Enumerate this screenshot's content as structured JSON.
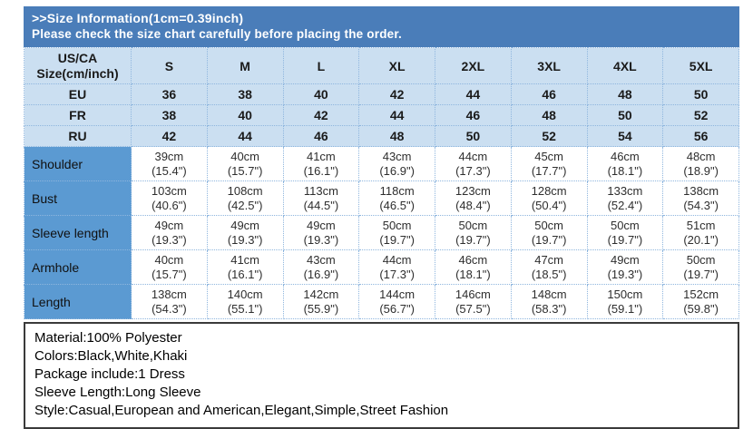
{
  "banner": {
    "line1": ">>Size Information(1cm=0.39inch)",
    "line2": "Please check the size chart carefully before placing the order."
  },
  "colors": {
    "banner_bg": "#4a7db9",
    "label_cell_bg": "#5b9ad2",
    "light_cell_bg": "#cbdff1",
    "grid_line": "#8fb6de",
    "details_border": "#3a3a3a",
    "banner_text": "#ffffff",
    "table_text": "#1a1a1a"
  },
  "size_chart": {
    "corner": {
      "line1": "US/CA",
      "line2": "Size(cm/inch)"
    },
    "size_headers": [
      "S",
      "M",
      "L",
      "XL",
      "2XL",
      "3XL",
      "4XL",
      "5XL"
    ],
    "region_rows": [
      {
        "label": "EU",
        "values": [
          "36",
          "38",
          "40",
          "42",
          "44",
          "46",
          "48",
          "50"
        ]
      },
      {
        "label": "FR",
        "values": [
          "38",
          "40",
          "42",
          "44",
          "46",
          "48",
          "50",
          "52"
        ]
      },
      {
        "label": "RU",
        "values": [
          "42",
          "44",
          "46",
          "48",
          "50",
          "52",
          "54",
          "56"
        ]
      }
    ],
    "measurement_rows": [
      {
        "label": "Shoulder",
        "values": [
          {
            "cm": "39cm",
            "inch": "(15.4\")"
          },
          {
            "cm": "40cm",
            "inch": "(15.7\")"
          },
          {
            "cm": "41cm",
            "inch": "(16.1\")"
          },
          {
            "cm": "43cm",
            "inch": "(16.9\")"
          },
          {
            "cm": "44cm",
            "inch": "(17.3\")"
          },
          {
            "cm": "45cm",
            "inch": "(17.7\")"
          },
          {
            "cm": "46cm",
            "inch": "(18.1\")"
          },
          {
            "cm": "48cm",
            "inch": "(18.9\")"
          }
        ]
      },
      {
        "label": "Bust",
        "values": [
          {
            "cm": "103cm",
            "inch": "(40.6\")"
          },
          {
            "cm": "108cm",
            "inch": "(42.5\")"
          },
          {
            "cm": "113cm",
            "inch": "(44.5\")"
          },
          {
            "cm": "118cm",
            "inch": "(46.5\")"
          },
          {
            "cm": "123cm",
            "inch": "(48.4\")"
          },
          {
            "cm": "128cm",
            "inch": "(50.4\")"
          },
          {
            "cm": "133cm",
            "inch": "(52.4\")"
          },
          {
            "cm": "138cm",
            "inch": "(54.3\")"
          }
        ]
      },
      {
        "label": "Sleeve length",
        "values": [
          {
            "cm": "49cm",
            "inch": "(19.3\")"
          },
          {
            "cm": "49cm",
            "inch": "(19.3\")"
          },
          {
            "cm": "49cm",
            "inch": "(19.3\")"
          },
          {
            "cm": "50cm",
            "inch": "(19.7\")"
          },
          {
            "cm": "50cm",
            "inch": "(19.7\")"
          },
          {
            "cm": "50cm",
            "inch": "(19.7\")"
          },
          {
            "cm": "50cm",
            "inch": "(19.7\")"
          },
          {
            "cm": "51cm",
            "inch": "(20.1\")"
          }
        ]
      },
      {
        "label": "Armhole",
        "values": [
          {
            "cm": "40cm",
            "inch": "(15.7\")"
          },
          {
            "cm": "41cm",
            "inch": "(16.1\")"
          },
          {
            "cm": "43cm",
            "inch": "(16.9\")"
          },
          {
            "cm": "44cm",
            "inch": "(17.3\")"
          },
          {
            "cm": "46cm",
            "inch": "(18.1\")"
          },
          {
            "cm": "47cm",
            "inch": "(18.5\")"
          },
          {
            "cm": "49cm",
            "inch": "(19.3\")"
          },
          {
            "cm": "50cm",
            "inch": "(19.7\")"
          }
        ]
      },
      {
        "label": "Length",
        "values": [
          {
            "cm": "138cm",
            "inch": "(54.3\")"
          },
          {
            "cm": "140cm",
            "inch": "(55.1\")"
          },
          {
            "cm": "142cm",
            "inch": "(55.9\")"
          },
          {
            "cm": "144cm",
            "inch": "(56.7\")"
          },
          {
            "cm": "146cm",
            "inch": "(57.5\")"
          },
          {
            "cm": "148cm",
            "inch": "(58.3\")"
          },
          {
            "cm": "150cm",
            "inch": "(59.1\")"
          },
          {
            "cm": "152cm",
            "inch": "(59.8\")"
          }
        ]
      }
    ]
  },
  "product_details": {
    "lines": [
      "Material:100% Polyester",
      "Colors:Black,White,Khaki",
      "Package include:1 Dress",
      "Sleeve Length:Long Sleeve",
      "Style:Casual,European and American,Elegant,Simple,Street Fashion"
    ]
  }
}
